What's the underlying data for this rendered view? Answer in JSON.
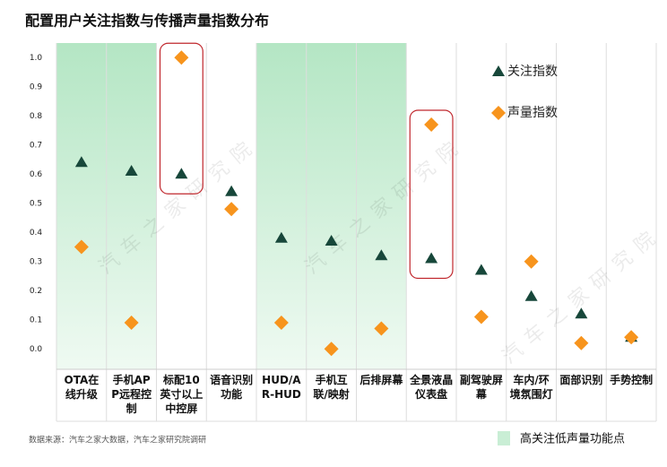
{
  "chart_data": {
    "type": "dot",
    "title": "配置用户关注指数与传播声量指数分布",
    "categories": [
      "OTA在线升级",
      "手机APP远程控制",
      "标配10英寸以上中控屏",
      "语音识别功能",
      "HUD/AR-HUD",
      "手机互联/映射",
      "后排屏幕",
      "全景液晶仪表盘",
      "副驾驶屏幕",
      "车内/环境氛围灯",
      "面部识别",
      "手势控制"
    ],
    "series": [
      {
        "name": "关注指数",
        "color": "#17473a",
        "marker": "triangle",
        "values": [
          0.64,
          0.61,
          0.6,
          0.54,
          0.38,
          0.37,
          0.32,
          0.31,
          0.27,
          0.18,
          0.12,
          0.04
        ]
      },
      {
        "name": "声量指数",
        "color": "#f7941d",
        "marker": "diamond",
        "values": [
          0.35,
          0.09,
          1.0,
          0.48,
          0.09,
          0.0,
          0.07,
          0.77,
          0.11,
          0.3,
          0.02,
          0.04
        ]
      }
    ],
    "ylim": [
      -0.07,
      1.05
    ],
    "yticks": [
      {
        "value": 0,
        "label": "0.0"
      },
      0.1,
      0.2,
      0.3,
      0.4,
      0.5,
      0.6,
      0.7,
      0.8,
      0.9,
      {
        "value": 1,
        "label": "1.0"
      }
    ],
    "shaded_categories": [
      0,
      1,
      4,
      5,
      6
    ],
    "shaded_label": "高关注低声量功能点",
    "circled_categories": [
      2,
      7
    ],
    "legend": "upper right",
    "source": "数据来源：汽车之家大数据，汽车之家研究院调研",
    "watermark": "汽车之家研究院"
  }
}
